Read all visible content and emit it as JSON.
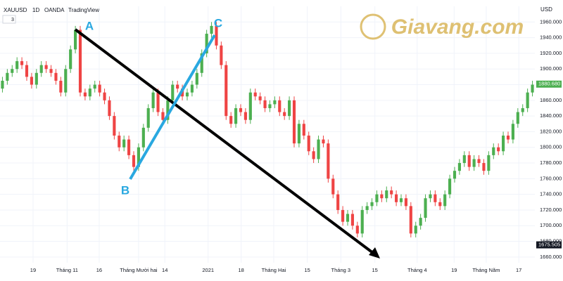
{
  "header": {
    "symbol": "XAUUSD",
    "interval": "1D",
    "broker": "OANDA",
    "source": "TradingView",
    "indicators": "3"
  },
  "logo": "Giavang.com",
  "annotations": {
    "a": "A",
    "b": "B",
    "c": "C"
  },
  "chart_data": {
    "type": "candlestick",
    "currency": "USD",
    "up_color": "#4caf50",
    "down_color": "#ef4444",
    "grid": true,
    "x": [
      0,
      1,
      2,
      3,
      4,
      5,
      6,
      7,
      8,
      9,
      10,
      11,
      12,
      13,
      14,
      15,
      16,
      17,
      18,
      19,
      20,
      21,
      22,
      23,
      24,
      25,
      26,
      27,
      28,
      29,
      30,
      31,
      32,
      33,
      34,
      35,
      36,
      37,
      38,
      39,
      40,
      41,
      42,
      43,
      44,
      45,
      46,
      47,
      48,
      49,
      50,
      51,
      52,
      53,
      54,
      55,
      56,
      57,
      58,
      59,
      60,
      61,
      62,
      63,
      64,
      65,
      66,
      67,
      68,
      69,
      70,
      71,
      72,
      73,
      74,
      75,
      76,
      77,
      78,
      79,
      80,
      81,
      82,
      83,
      84,
      85,
      86,
      87,
      88,
      89,
      90,
      91,
      92,
      93,
      94,
      95,
      96,
      97,
      98,
      99,
      100,
      101,
      102,
      103,
      104,
      105,
      106,
      107,
      108,
      109
    ],
    "open": [
      1875,
      1885,
      1895,
      1900,
      1910,
      1905,
      1890,
      1880,
      1895,
      1905,
      1900,
      1895,
      1885,
      1870,
      1900,
      1925,
      1950,
      1870,
      1865,
      1875,
      1880,
      1870,
      1860,
      1840,
      1815,
      1800,
      1810,
      1790,
      1775,
      1800,
      1825,
      1850,
      1870,
      1845,
      1835,
      1860,
      1880,
      1875,
      1865,
      1870,
      1880,
      1895,
      1920,
      1945,
      1955,
      1930,
      1905,
      1840,
      1830,
      1850,
      1845,
      1835,
      1870,
      1865,
      1860,
      1850,
      1855,
      1860,
      1845,
      1840,
      1860,
      1805,
      1830,
      1815,
      1795,
      1785,
      1810,
      1805,
      1760,
      1740,
      1720,
      1705,
      1715,
      1700,
      1690,
      1720,
      1725,
      1730,
      1740,
      1735,
      1745,
      1740,
      1730,
      1735,
      1725,
      1690,
      1700,
      1710,
      1735,
      1740,
      1730,
      1725,
      1740,
      1760,
      1770,
      1780,
      1790,
      1775,
      1785,
      1780,
      1770,
      1790,
      1800,
      1795,
      1815,
      1810,
      1830,
      1845,
      1850,
      1870
    ],
    "high": [
      1890,
      1900,
      1905,
      1915,
      1915,
      1910,
      1895,
      1900,
      1910,
      1910,
      1905,
      1900,
      1890,
      1905,
      1930,
      1955,
      1955,
      1875,
      1880,
      1885,
      1885,
      1875,
      1865,
      1845,
      1820,
      1815,
      1815,
      1795,
      1805,
      1830,
      1855,
      1875,
      1875,
      1850,
      1865,
      1885,
      1885,
      1880,
      1875,
      1885,
      1900,
      1925,
      1950,
      1960,
      1960,
      1935,
      1910,
      1845,
      1855,
      1855,
      1850,
      1875,
      1875,
      1870,
      1865,
      1860,
      1865,
      1865,
      1850,
      1865,
      1865,
      1835,
      1835,
      1820,
      1800,
      1815,
      1815,
      1810,
      1765,
      1745,
      1725,
      1720,
      1720,
      1705,
      1725,
      1730,
      1735,
      1745,
      1745,
      1750,
      1750,
      1745,
      1740,
      1740,
      1730,
      1705,
      1715,
      1740,
      1745,
      1745,
      1735,
      1745,
      1765,
      1775,
      1785,
      1795,
      1795,
      1790,
      1790,
      1785,
      1795,
      1805,
      1805,
      1820,
      1820,
      1835,
      1850,
      1855,
      1875,
      1885
    ],
    "low": [
      1870,
      1880,
      1890,
      1895,
      1900,
      1885,
      1875,
      1875,
      1890,
      1895,
      1890,
      1880,
      1865,
      1865,
      1895,
      1920,
      1865,
      1860,
      1860,
      1870,
      1865,
      1855,
      1835,
      1810,
      1795,
      1795,
      1785,
      1770,
      1770,
      1795,
      1820,
      1845,
      1840,
      1830,
      1830,
      1855,
      1870,
      1860,
      1860,
      1865,
      1875,
      1890,
      1915,
      1940,
      1925,
      1900,
      1835,
      1825,
      1825,
      1840,
      1830,
      1830,
      1860,
      1855,
      1845,
      1845,
      1850,
      1840,
      1835,
      1835,
      1800,
      1800,
      1810,
      1790,
      1780,
      1780,
      1800,
      1755,
      1735,
      1715,
      1700,
      1700,
      1695,
      1685,
      1685,
      1715,
      1720,
      1725,
      1730,
      1730,
      1735,
      1725,
      1725,
      1720,
      1685,
      1685,
      1695,
      1705,
      1730,
      1725,
      1720,
      1720,
      1735,
      1755,
      1765,
      1775,
      1770,
      1770,
      1775,
      1765,
      1765,
      1785,
      1790,
      1790,
      1805,
      1805,
      1825,
      1840,
      1845,
      1865
    ],
    "close": [
      1885,
      1895,
      1900,
      1910,
      1905,
      1890,
      1880,
      1895,
      1905,
      1900,
      1895,
      1885,
      1870,
      1900,
      1925,
      1950,
      1870,
      1865,
      1875,
      1880,
      1870,
      1860,
      1840,
      1815,
      1800,
      1810,
      1790,
      1775,
      1800,
      1825,
      1850,
      1870,
      1845,
      1835,
      1860,
      1880,
      1875,
      1865,
      1870,
      1880,
      1895,
      1920,
      1945,
      1955,
      1930,
      1905,
      1840,
      1830,
      1850,
      1845,
      1835,
      1870,
      1865,
      1860,
      1850,
      1855,
      1860,
      1845,
      1840,
      1860,
      1805,
      1830,
      1815,
      1795,
      1785,
      1810,
      1805,
      1760,
      1740,
      1720,
      1705,
      1715,
      1700,
      1690,
      1720,
      1725,
      1730,
      1740,
      1735,
      1745,
      1740,
      1730,
      1735,
      1725,
      1690,
      1700,
      1710,
      1735,
      1740,
      1730,
      1725,
      1740,
      1760,
      1770,
      1780,
      1790,
      1775,
      1785,
      1780,
      1770,
      1790,
      1800,
      1795,
      1815,
      1810,
      1830,
      1845,
      1850,
      1870,
      1880
    ],
    "xlim": [
      -0.5,
      109.5
    ],
    "xticks": [
      {
        "value": 6.3,
        "label": "19"
      },
      {
        "value": 13.3,
        "label": "Tháng 11"
      },
      {
        "value": 19.9,
        "label": "16"
      },
      {
        "value": 28.0,
        "label": "Tháng Mười hai"
      },
      {
        "value": 33.4,
        "label": "14"
      },
      {
        "value": 42.3,
        "label": "2021"
      },
      {
        "value": 49.1,
        "label": "18"
      },
      {
        "value": 55.8,
        "label": "Tháng Hai"
      },
      {
        "value": 62.7,
        "label": "15"
      },
      {
        "value": 69.6,
        "label": "Tháng 3"
      },
      {
        "value": 76.6,
        "label": "15"
      },
      {
        "value": 85.3,
        "label": "Tháng 4"
      },
      {
        "value": 92.9,
        "label": "19"
      },
      {
        "value": 99.5,
        "label": "Tháng Năm"
      },
      {
        "value": 106.2,
        "label": "17"
      }
    ],
    "ylim": [
      1650,
      1980
    ],
    "yticks": [
      {
        "value": 1660,
        "label": "1660.000"
      },
      {
        "value": 1680,
        "label": "1680.000"
      },
      {
        "value": 1700,
        "label": "1700.000"
      },
      {
        "value": 1720,
        "label": "1720.000"
      },
      {
        "value": 1740,
        "label": "1740.000"
      },
      {
        "value": 1760,
        "label": "1760.000"
      },
      {
        "value": 1780,
        "label": "1780.000"
      },
      {
        "value": 1800,
        "label": "1800.000"
      },
      {
        "value": 1820,
        "label": "1820.000"
      },
      {
        "value": 1840,
        "label": "1840.000"
      },
      {
        "value": 1860,
        "label": "1860.000"
      },
      {
        "value": 1880,
        "label": "1880.000"
      },
      {
        "value": 1900,
        "label": "1900.000"
      },
      {
        "value": 1920,
        "label": "1920.000"
      },
      {
        "value": 1940,
        "label": "1940.000"
      },
      {
        "value": 1960,
        "label": "1960.000"
      }
    ],
    "last_price": {
      "value": 1880.68,
      "label": "1880.680",
      "color": "#4caf50"
    },
    "low_marker": {
      "value": 1675.505,
      "label": "1675.505",
      "color": "#131722"
    }
  }
}
